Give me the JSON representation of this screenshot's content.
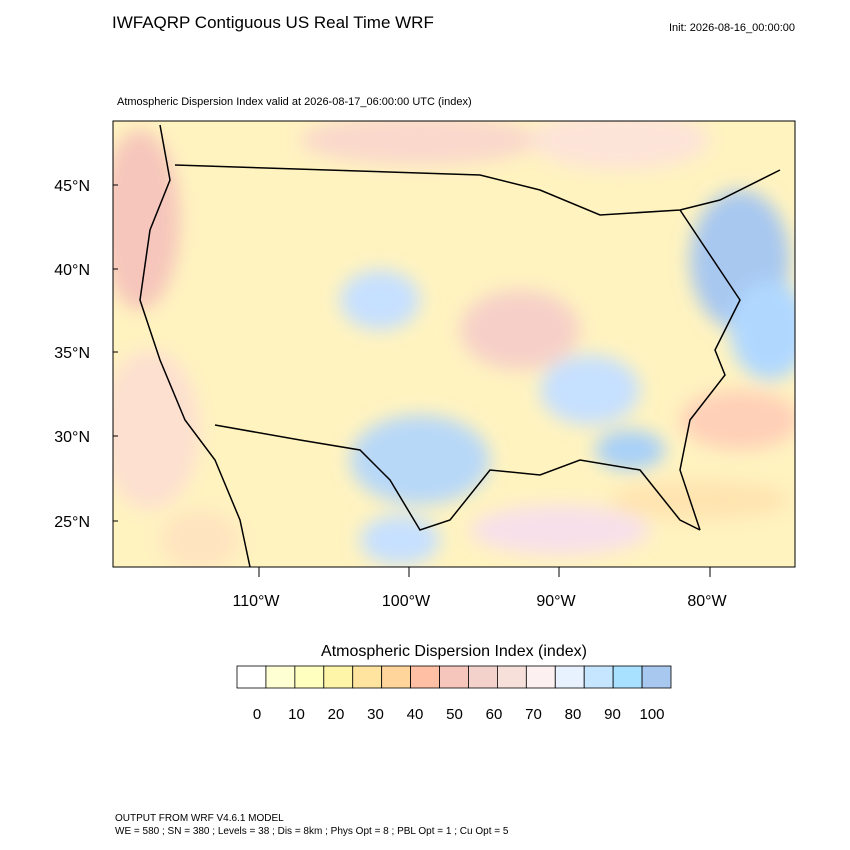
{
  "header": {
    "title": "IWFAQRP Contiguous US Real Time WRF",
    "init": "Init: 2026-08-16_00:00:00"
  },
  "map": {
    "subtitle": "Atmospheric Dispersion Index valid at 2026-08-17_06:00:00 UTC   (index)",
    "lat_labels": [
      "45°N",
      "40°N",
      "35°N",
      "30°N",
      "25°N"
    ],
    "lon_labels": [
      "110°W",
      "100°W",
      "90°W",
      "80°W"
    ]
  },
  "colorbar": {
    "title": "Atmospheric Dispersion Index  (index)",
    "colors": [
      "#ffffff",
      "#ffffd4",
      "#ffffbf",
      "#fff5a8",
      "#ffe4a0",
      "#ffd59c",
      "#ffbfa4",
      "#f6c6bc",
      "#f3d2cc",
      "#f7e0da",
      "#fdf0f0",
      "#e8f2ff",
      "#c6e6ff",
      "#a8e0ff",
      "#a8c8f0"
    ],
    "ticks": [
      0,
      10,
      20,
      30,
      40,
      50,
      60,
      70,
      80,
      90,
      100
    ]
  },
  "footer": {
    "line1": "OUTPUT FROM WRF V4.6.1 MODEL",
    "line2": "WE = 580 ; SN = 380 ; Levels = 38 ; Dis = 8km ; Phys Opt = 8 ; PBL Opt = 1 ; Cu Opt = 5"
  }
}
